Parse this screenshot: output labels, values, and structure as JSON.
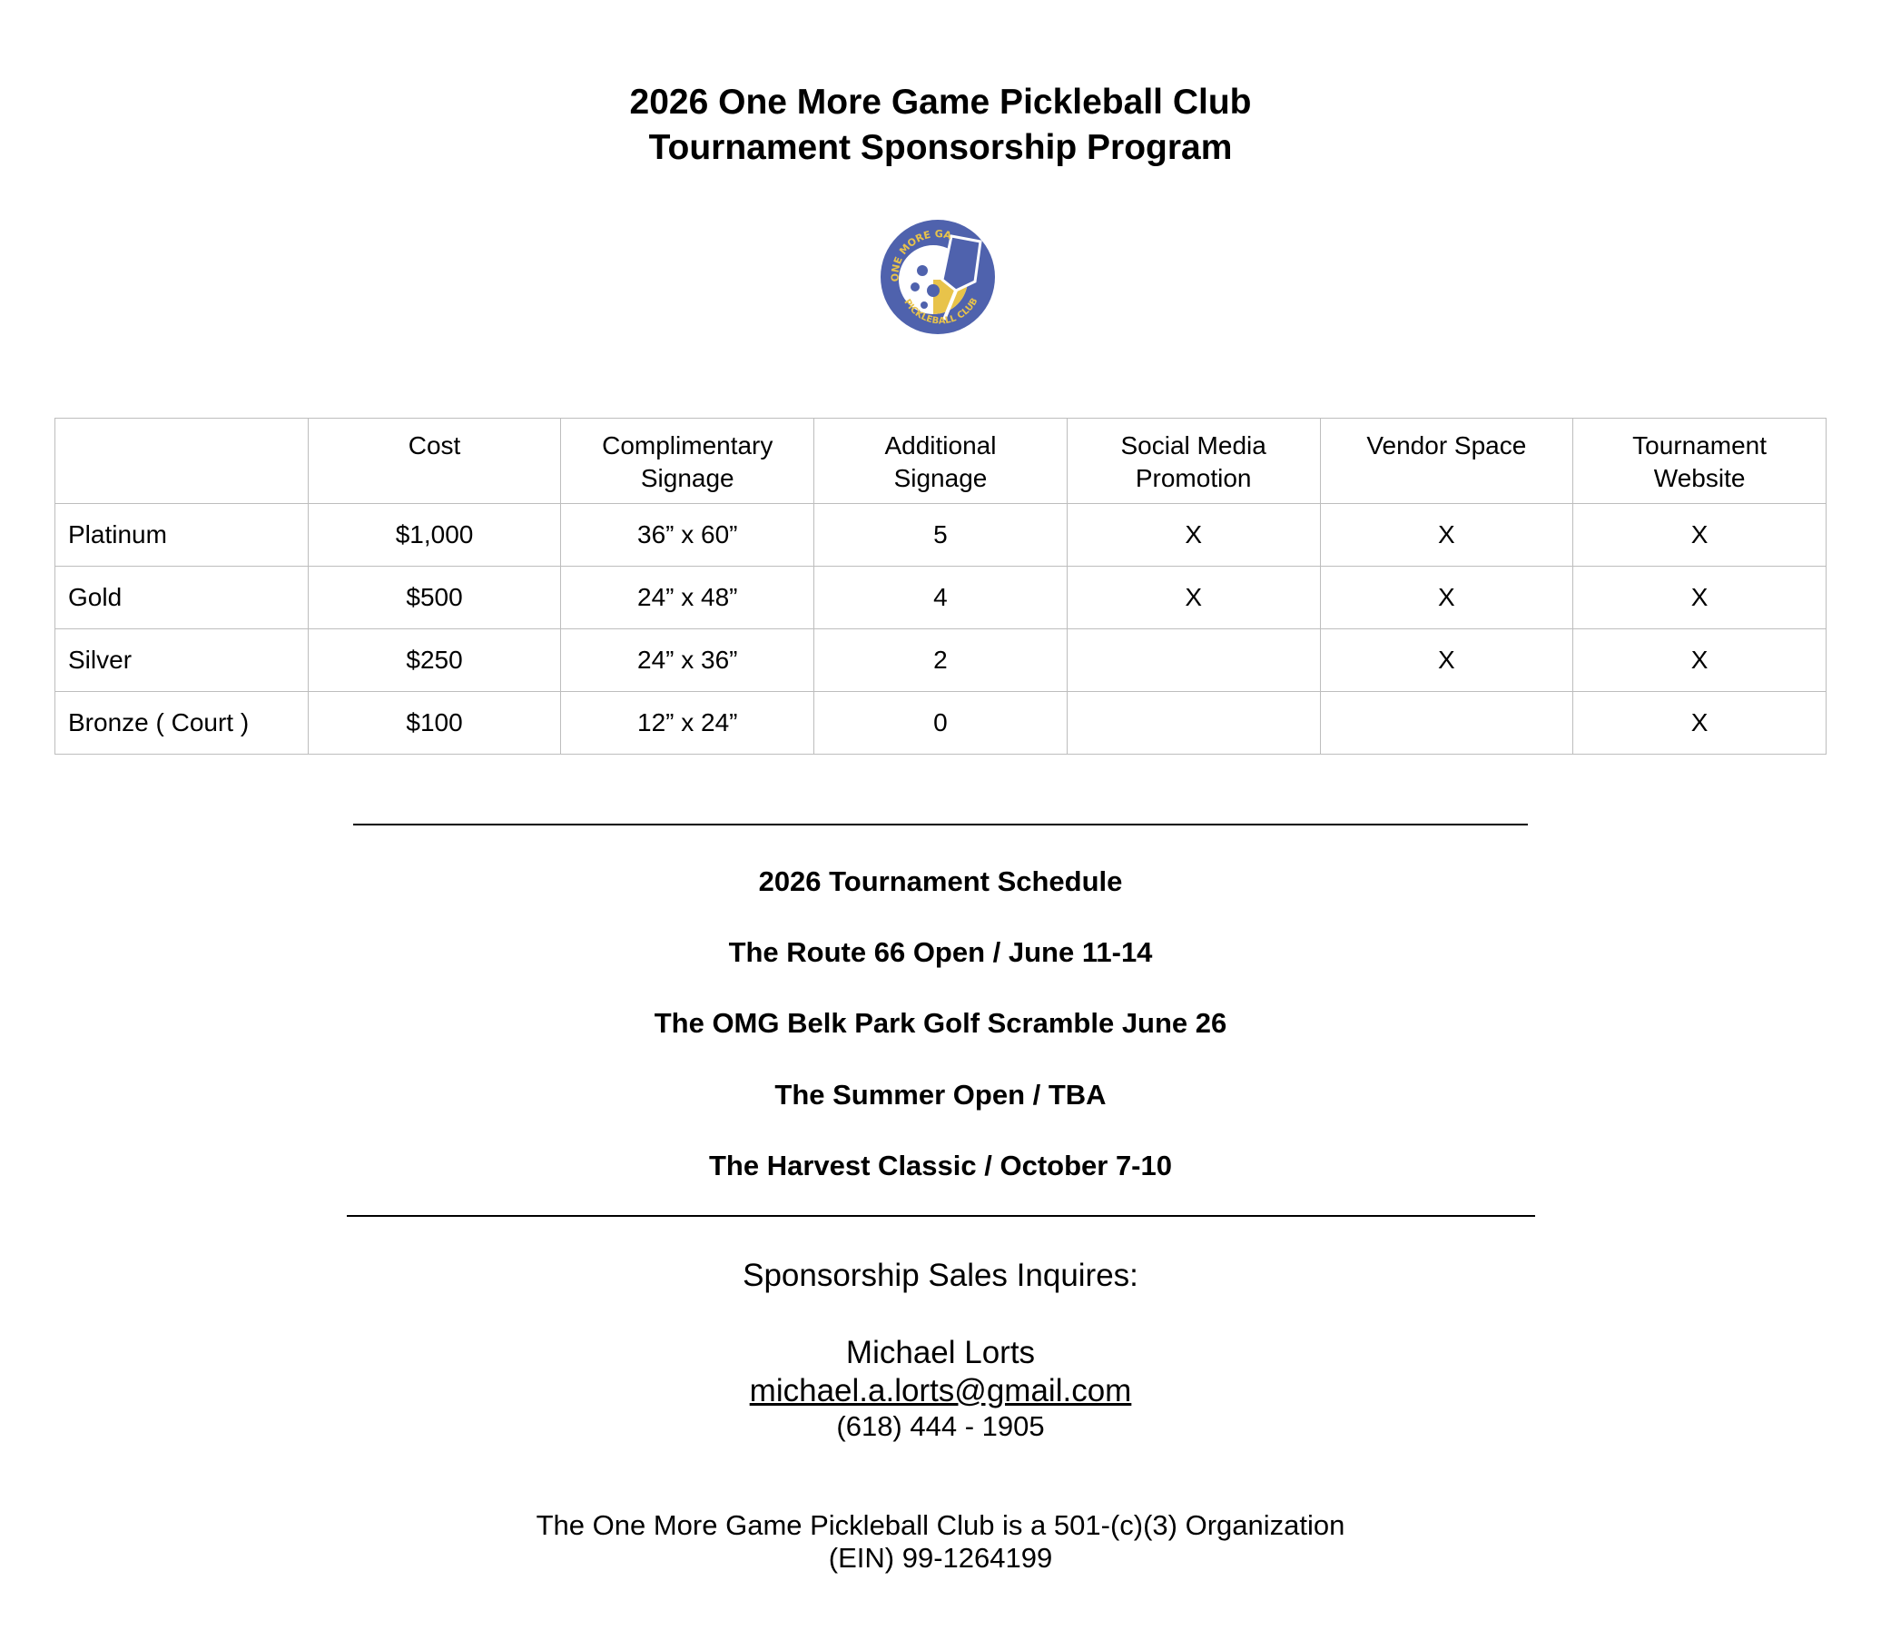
{
  "title": {
    "line1": "2026 One More Game Pickleball Club",
    "line2": "Tournament Sponsorship Program"
  },
  "logo": {
    "text_top": "ONE MORE GAME",
    "text_bottom": "PICKLEBALL CLUB",
    "colors": {
      "blue": "#4f62ad",
      "yellow": "#e8c34a"
    }
  },
  "table": {
    "headers": [
      "",
      "Cost",
      "Complimentary Signage",
      "Additional Signage",
      "Social Media Promotion",
      "Vendor Space",
      "Tournament Website"
    ],
    "rows": [
      [
        "Platinum",
        "$1,000",
        "36” x 60”",
        "5",
        "X",
        "X",
        "X"
      ],
      [
        "Gold",
        "$500",
        "24” x 48”",
        "4",
        "X",
        "X",
        "X"
      ],
      [
        "Silver",
        "$250",
        "24” x 36”",
        "2",
        "",
        "X",
        "X"
      ],
      [
        "Bronze ( Court )",
        "$100",
        "12” x 24”",
        "0",
        "",
        "",
        "X"
      ]
    ]
  },
  "schedule": {
    "heading": "2026 Tournament Schedule",
    "events": [
      "The Route 66 Open / June 11-14",
      "The OMG Belk Park Golf Scramble June 26",
      "The Summer Open / TBA",
      "The Harvest Classic / October 7-10"
    ]
  },
  "contact": {
    "heading": "Sponsorship Sales Inquires:",
    "name": "Michael Lorts",
    "email": "michael.a.lorts@gmail.com",
    "phone": "(618) 444 - 1905"
  },
  "footer": {
    "line1": "The One More Game Pickleball Club is a 501-(c)(3) Organization",
    "line2": "(EIN) 99-1264199"
  }
}
